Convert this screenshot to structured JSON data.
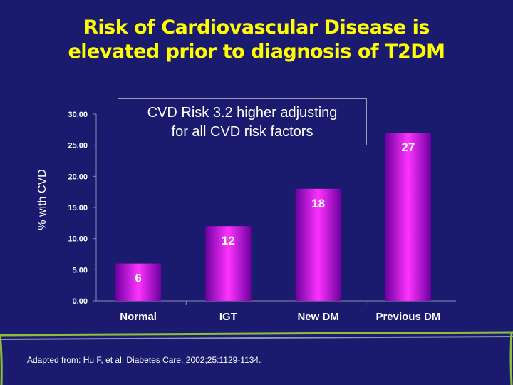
{
  "slide": {
    "title_line1": "Risk of Cardiovascular Disease is",
    "title_line2": "elevated prior to diagnosis of T2DM",
    "callout_line1": "CVD Risk 3.2 higher adjusting",
    "callout_line2": "for all CVD risk factors",
    "source": "Adapted from: Hu F, et al. Diabetes Care. 2002;25:1129-1134."
  },
  "colors": {
    "background": "#1a1a6e",
    "title": "#ffff00",
    "bar_edge": "#6e00a0",
    "bar_center": "#ff33ff",
    "value_label": "#ffffff"
  },
  "chart_data": {
    "type": "bar",
    "categories": [
      "Normal",
      "IGT",
      "New DM",
      "Previous DM"
    ],
    "values": [
      6,
      12,
      18,
      27
    ],
    "value_labels": [
      "6",
      "12",
      "18",
      "27"
    ],
    "ylabel": "% with CVD",
    "xlabel": "",
    "ylim": [
      0,
      30
    ],
    "yticks": [
      0,
      5,
      10,
      15,
      20,
      25,
      30
    ],
    "ytick_labels": [
      "0.00",
      "5.00",
      "10.00",
      "15.00",
      "20.00",
      "25.00",
      "30.00"
    ],
    "grid": false
  }
}
